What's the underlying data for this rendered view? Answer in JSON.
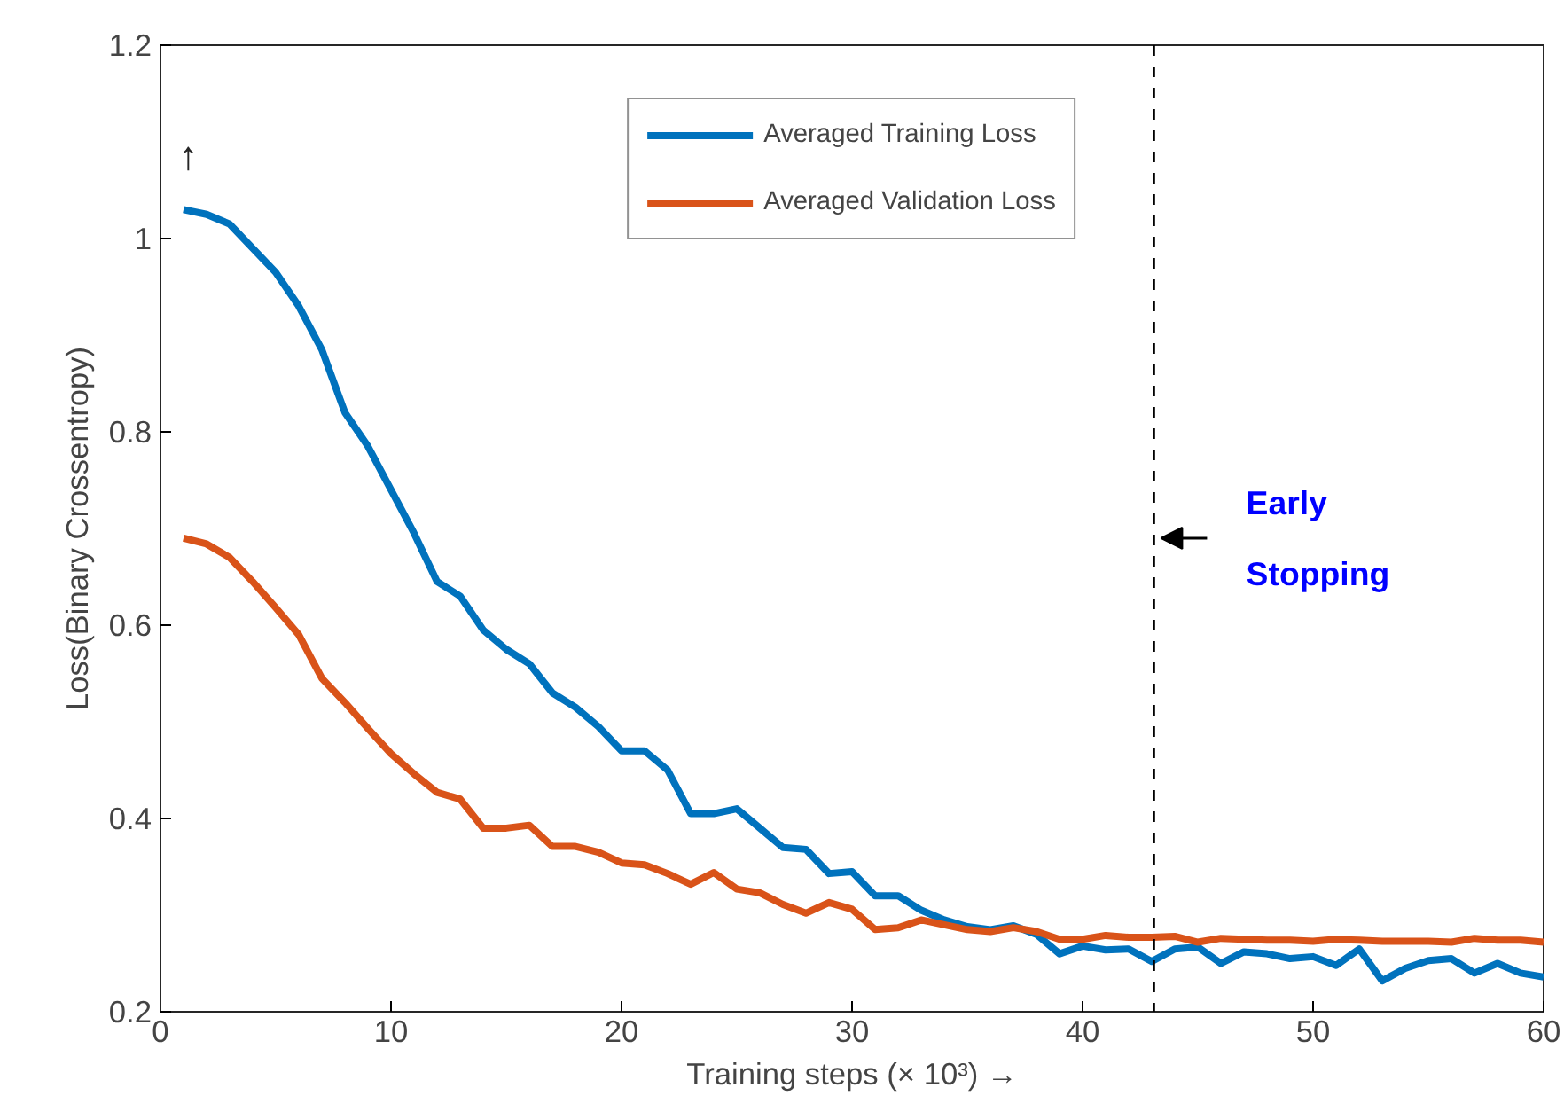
{
  "chart_data": {
    "type": "line",
    "xlabel": "Training steps (× 10³) →",
    "ylabel": "Loss(Binary Crossentropy)",
    "annotations": [
      "↑",
      {
        "text": "Early\nStopping",
        "x": 43.1,
        "y": 0.69
      }
    ],
    "x": [
      1,
      2,
      3,
      4,
      5,
      6,
      7,
      8,
      9,
      10,
      11,
      12,
      13,
      14,
      15,
      16,
      17,
      18,
      19,
      20,
      21,
      22,
      23,
      24,
      25,
      26,
      27,
      28,
      29,
      30,
      31,
      32,
      33,
      34,
      35,
      36,
      37,
      38,
      39,
      40,
      41,
      42,
      43,
      44,
      45,
      46,
      47,
      48,
      49,
      50,
      51,
      52,
      53,
      54,
      55,
      56,
      57,
      58,
      59,
      60
    ],
    "series": [
      {
        "name": "Averaged Training Loss",
        "color": "#0072bd",
        "values": [
          1.03,
          1.025,
          1.015,
          0.99,
          0.965,
          0.93,
          0.885,
          0.82,
          0.785,
          0.74,
          0.695,
          0.645,
          0.63,
          0.595,
          0.575,
          0.56,
          0.53,
          0.515,
          0.495,
          0.47,
          0.47,
          0.45,
          0.405,
          0.405,
          0.41,
          0.39,
          0.37,
          0.368,
          0.343,
          0.345,
          0.32,
          0.32,
          0.305,
          0.295,
          0.288,
          0.285,
          0.289,
          0.28,
          0.26,
          0.268,
          0.264,
          0.265,
          0.252,
          0.265,
          0.267,
          0.25,
          0.262,
          0.26,
          0.255,
          0.257,
          0.248,
          0.265,
          0.232,
          0.245,
          0.253,
          0.255,
          0.24,
          0.25,
          0.24,
          0.236
        ]
      },
      {
        "name": "Averaged Validation Loss",
        "color": "#d95319",
        "values": [
          0.69,
          0.684,
          0.67,
          0.645,
          0.618,
          0.59,
          0.545,
          0.52,
          0.493,
          0.467,
          0.446,
          0.427,
          0.42,
          0.39,
          0.39,
          0.393,
          0.371,
          0.371,
          0.365,
          0.354,
          0.352,
          0.343,
          0.332,
          0.344,
          0.327,
          0.323,
          0.311,
          0.302,
          0.313,
          0.306,
          0.285,
          0.287,
          0.295,
          0.29,
          0.285,
          0.283,
          0.287,
          0.283,
          0.275,
          0.275,
          0.279,
          0.277,
          0.277,
          0.278,
          0.272,
          0.276,
          0.275,
          0.274,
          0.274,
          0.273,
          0.275,
          0.274,
          0.273,
          0.273,
          0.273,
          0.272,
          0.276,
          0.274,
          0.274,
          0.272
        ]
      }
    ],
    "ref_lines": [
      {
        "axis": "x",
        "value": 43.1,
        "color": "#000000",
        "line_style": "dashed"
      }
    ],
    "xlim": [
      0,
      60
    ],
    "ylim": [
      0.2,
      1.2
    ],
    "xticks": [
      0,
      10,
      20,
      30,
      40,
      50,
      60
    ],
    "yticks": [
      0.2,
      0.4,
      0.6,
      0.8,
      1,
      1.2
    ],
    "legend": "top",
    "grid": false,
    "marker": "none",
    "line_style": "solid"
  }
}
